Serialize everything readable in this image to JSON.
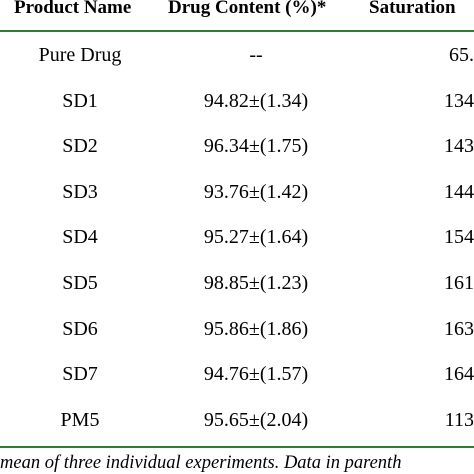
{
  "table": {
    "headers": {
      "name": "Product Name",
      "content": "Drug Content (%)*",
      "saturation": "Saturation"
    },
    "rows": [
      {
        "name": "Pure Drug",
        "content": "--",
        "saturation": "65."
      },
      {
        "name": "SD1",
        "content": "94.82±(1.34)",
        "saturation": "134"
      },
      {
        "name": "SD2",
        "content": "96.34±(1.75)",
        "saturation": "143"
      },
      {
        "name": "SD3",
        "content": "93.76±(1.42)",
        "saturation": "144"
      },
      {
        "name": "SD4",
        "content": "95.27±(1.64)",
        "saturation": "154"
      },
      {
        "name": "SD5",
        "content": "98.85±(1.23)",
        "saturation": "161"
      },
      {
        "name": "SD6",
        "content": "95.86±(1.86)",
        "saturation": "163"
      },
      {
        "name": "SD7",
        "content": "94.76±(1.57)",
        "saturation": "164"
      },
      {
        "name": "PM5",
        "content": "95.65±(2.04)",
        "saturation": "113"
      }
    ]
  },
  "footnote": "mean of three individual experiments.  Data in parenth",
  "colors": {
    "rule": "#2e7d32",
    "text": "#000000"
  }
}
